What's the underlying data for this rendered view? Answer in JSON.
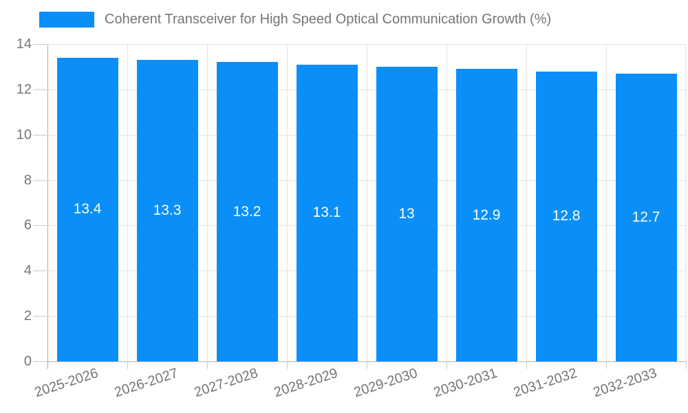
{
  "legend": {
    "label": "Coherent Transceiver for High Speed Optical Communication Growth (%)",
    "swatch_color": "#0a8ef8"
  },
  "chart_data": {
    "type": "bar",
    "title": "Coherent Transceiver for High Speed Optical Communication Growth (%)",
    "categories": [
      "2025-2026",
      "2026-2027",
      "2027-2028",
      "2028-2029",
      "2029-2030",
      "2030-2031",
      "2031-2032",
      "2032-2033"
    ],
    "values": [
      13.4,
      13.3,
      13.2,
      13.1,
      13,
      12.9,
      12.8,
      12.7
    ],
    "bar_labels": [
      "13.4",
      "13.3",
      "13.2",
      "13.1",
      "13",
      "12.9",
      "12.8",
      "12.7"
    ],
    "xlabel": "",
    "ylabel": "",
    "ylim": [
      0,
      14
    ],
    "yticks": [
      0,
      2,
      4,
      6,
      8,
      10,
      12,
      14
    ],
    "grid": true,
    "legend_position": "top-left",
    "colors": {
      "bar": "#0a8ef8",
      "bar_label_text": "#ffffff",
      "axis_text": "#757575",
      "gridline": "#e3e3e3",
      "axis_line": "#b3b3b3",
      "tick": "#cccccc",
      "background": "#ffffff"
    }
  }
}
